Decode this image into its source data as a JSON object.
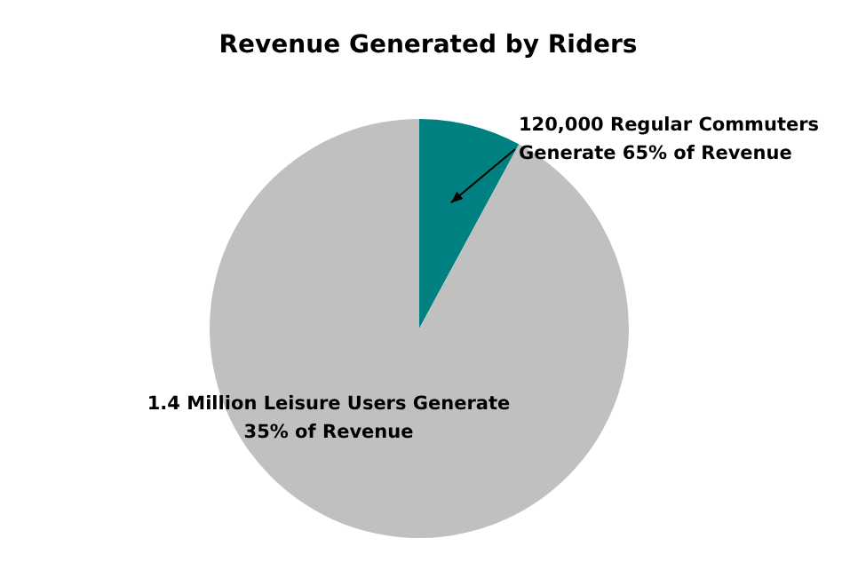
{
  "chart_data": {
    "type": "pie",
    "title": "Revenue Generated by Riders",
    "categories": [
      "120,000 Regular Commuters\nGenerate 65% of Revenue",
      "1.4 Million Leisure Users Generate\n35% of Revenue"
    ],
    "values": [
      120000,
      1400000
    ],
    "colors": [
      "#008080",
      "#c0c0c0"
    ],
    "legend": false
  }
}
